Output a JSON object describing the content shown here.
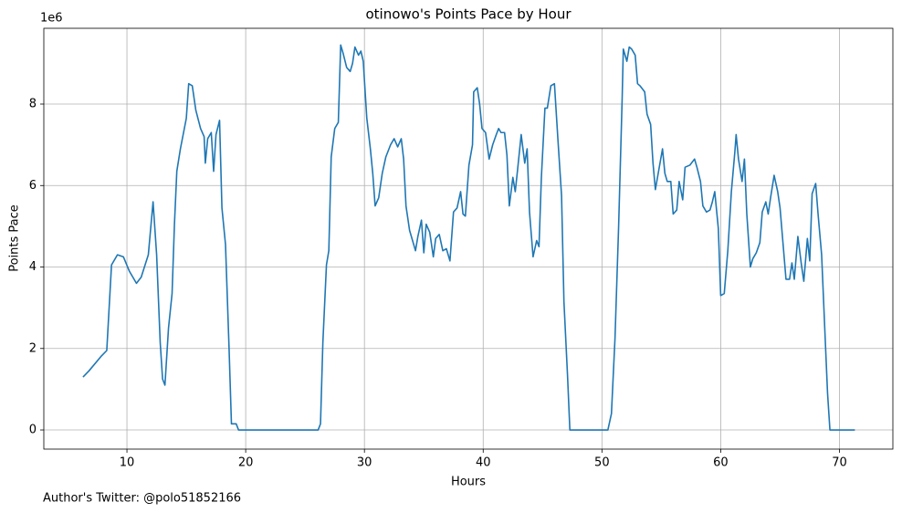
{
  "chart_data": {
    "type": "line",
    "title": "otinowo's Points Pace by Hour",
    "xlabel": "Hours",
    "ylabel": "Points Pace",
    "y_offset_label": "1e6",
    "footer": "Author's Twitter: @polo51852166",
    "color": "#1f77b4",
    "grid": true,
    "xlim": [
      3,
      74.5
    ],
    "ylim": [
      -470000,
      9860000
    ],
    "xticks": [
      10,
      20,
      30,
      40,
      50,
      60,
      70
    ],
    "yticks": [
      0,
      {
        "value": 2000000,
        "label": "2"
      },
      {
        "value": 4000000,
        "label": "4"
      },
      {
        "value": 6000000,
        "label": "6"
      },
      {
        "value": 8000000,
        "label": "8"
      }
    ],
    "x": [
      6.3,
      6.8,
      7.8,
      8.3,
      8.7,
      9.2,
      9.7,
      10.2,
      10.8,
      11.2,
      11.8,
      12.2,
      12.5,
      12.8,
      13.0,
      13.2,
      13.5,
      13.8,
      14.0,
      14.2,
      14.5,
      15.0,
      15.2,
      15.5,
      15.8,
      16.2,
      16.5,
      16.6,
      16.8,
      17.1,
      17.3,
      17.5,
      17.8,
      18.0,
      18.3,
      18.6,
      18.8,
      19.2,
      19.4,
      26.1,
      26.3,
      26.5,
      26.8,
      27.0,
      27.2,
      27.5,
      27.8,
      28.0,
      28.2,
      28.5,
      28.8,
      29.0,
      29.2,
      29.5,
      29.7,
      29.9,
      30.2,
      30.5,
      30.7,
      30.9,
      31.2,
      31.5,
      31.8,
      32.2,
      32.5,
      32.8,
      33.1,
      33.3,
      33.5,
      33.8,
      34.1,
      34.3,
      34.5,
      34.8,
      35.0,
      35.2,
      35.5,
      35.8,
      36.0,
      36.3,
      36.6,
      36.9,
      37.2,
      37.5,
      37.8,
      38.1,
      38.3,
      38.5,
      38.8,
      39.1,
      39.2,
      39.5,
      39.7,
      39.9,
      40.2,
      40.5,
      40.8,
      41.1,
      41.3,
      41.5,
      41.8,
      42.0,
      42.2,
      42.5,
      42.7,
      42.9,
      43.2,
      43.5,
      43.7,
      43.9,
      44.2,
      44.5,
      44.7,
      44.9,
      45.2,
      45.4,
      45.7,
      46.0,
      46.3,
      46.6,
      46.8,
      47.1,
      47.3,
      50.5,
      50.8,
      51.1,
      51.4,
      51.7,
      51.8,
      52.1,
      52.3,
      52.5,
      52.8,
      53.0,
      53.2,
      53.6,
      53.8,
      54.1,
      54.3,
      54.5,
      54.8,
      55.1,
      55.3,
      55.5,
      55.8,
      56.0,
      56.3,
      56.5,
      56.8,
      57.0,
      57.4,
      57.8,
      58.0,
      58.3,
      58.5,
      58.8,
      59.1,
      59.3,
      59.5,
      59.8,
      60.0,
      60.3,
      60.6,
      60.9,
      61.2,
      61.3,
      61.5,
      61.8,
      62.0,
      62.2,
      62.5,
      62.7,
      63.0,
      63.3,
      63.5,
      63.8,
      64.0,
      64.2,
      64.5,
      64.8,
      65.0,
      65.2,
      65.5,
      65.8,
      66.0,
      66.2,
      66.5,
      66.8,
      67.0,
      67.3,
      67.5,
      67.7,
      68.0,
      68.2,
      68.5,
      68.8,
      69.0,
      69.2,
      71.3
    ],
    "values": [
      1300000,
      1450000,
      1800000,
      1950000,
      4050000,
      4300000,
      4250000,
      3900000,
      3600000,
      3750000,
      4300000,
      5600000,
      4300000,
      2150000,
      1250000,
      1100000,
      2500000,
      3350000,
      5050000,
      6350000,
      6900000,
      7650000,
      8500000,
      8450000,
      7850000,
      7400000,
      7200000,
      6550000,
      7150000,
      7300000,
      6350000,
      7250000,
      7600000,
      5450000,
      4550000,
      2000000,
      150000,
      150000,
      0,
      0,
      150000,
      2150000,
      4050000,
      4400000,
      6700000,
      7400000,
      7550000,
      9450000,
      9250000,
      8900000,
      8800000,
      9000000,
      9400000,
      9200000,
      9300000,
      9050000,
      7650000,
      6900000,
      6300000,
      5500000,
      5700000,
      6300000,
      6700000,
      7000000,
      7150000,
      6950000,
      7150000,
      6650000,
      5500000,
      4900000,
      4600000,
      4400000,
      4750000,
      5150000,
      4350000,
      5050000,
      4850000,
      4250000,
      4700000,
      4800000,
      4400000,
      4450000,
      4150000,
      5350000,
      5450000,
      5850000,
      5300000,
      5250000,
      6500000,
      7000000,
      8300000,
      8400000,
      8000000,
      7400000,
      7300000,
      6650000,
      7000000,
      7250000,
      7400000,
      7300000,
      7300000,
      6750000,
      5500000,
      6200000,
      5850000,
      6400000,
      7250000,
      6550000,
      6900000,
      5350000,
      4250000,
      4650000,
      4500000,
      6200000,
      7900000,
      7900000,
      8450000,
      8500000,
      7100000,
      5750000,
      3150000,
      1350000,
      0,
      0,
      400000,
      2250000,
      4950000,
      8100000,
      9350000,
      9050000,
      9400000,
      9350000,
      9200000,
      8500000,
      8450000,
      8300000,
      7750000,
      7500000,
      6550000,
      5900000,
      6400000,
      6900000,
      6300000,
      6100000,
      6100000,
      5300000,
      5400000,
      6100000,
      5650000,
      6450000,
      6500000,
      6650000,
      6450000,
      6100000,
      5500000,
      5350000,
      5400000,
      5600000,
      5850000,
      4950000,
      3300000,
      3350000,
      4400000,
      5850000,
      6850000,
      7250000,
      6650000,
      6100000,
      6650000,
      5300000,
      4000000,
      4200000,
      4350000,
      4600000,
      5350000,
      5600000,
      5300000,
      5700000,
      6250000,
      5850000,
      5450000,
      4750000,
      3700000,
      3700000,
      4100000,
      3700000,
      4750000,
      4050000,
      3650000,
      4700000,
      4150000,
      5800000,
      6050000,
      5300000,
      4300000,
      2250000,
      900000,
      0,
      0
    ]
  }
}
